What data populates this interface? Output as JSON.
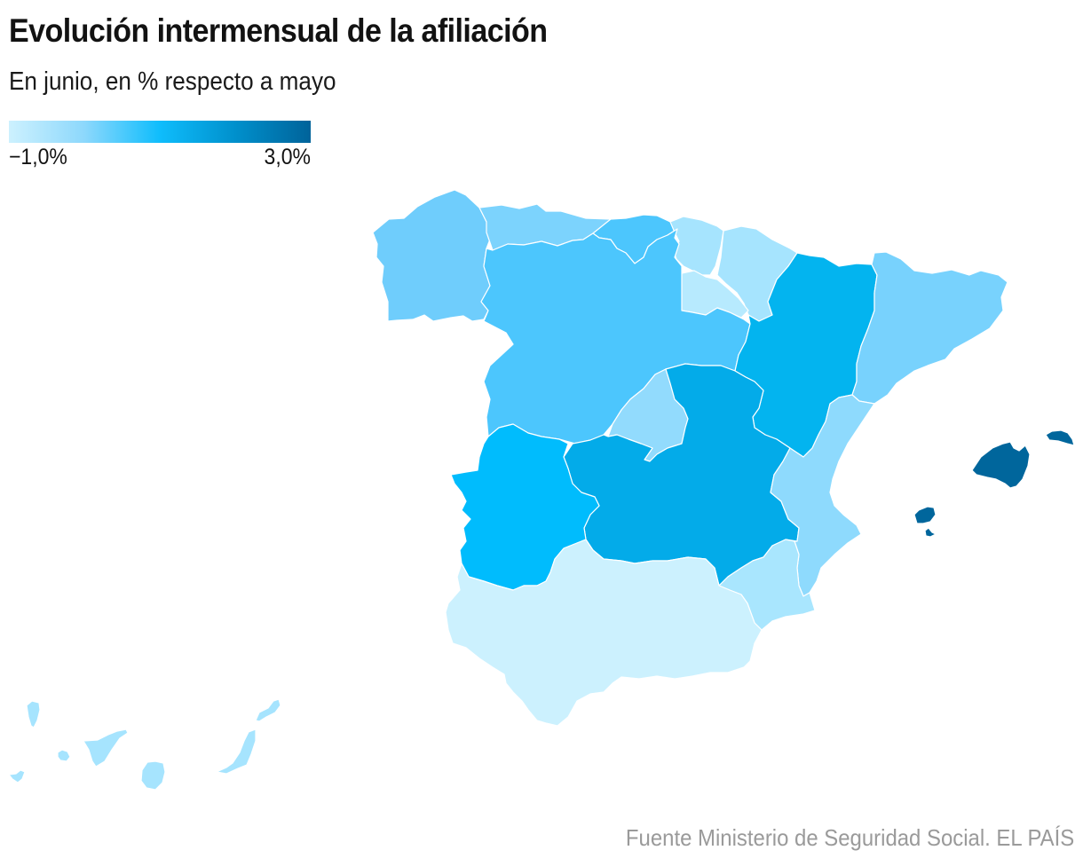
{
  "header": {
    "title": "Evolución intermensual de la afiliación",
    "subtitle": "En junio, en % respecto a mayo"
  },
  "legend": {
    "min_label": "−1,0%",
    "max_label": "3,0%",
    "min_value": -1.0,
    "max_value": 3.0,
    "colors": [
      "#cdf1fe",
      "#8dd8fc",
      "#0fbdfc",
      "#0090cc",
      "#00639a"
    ]
  },
  "map": {
    "type": "choropleth",
    "variable": "Variación intermensual de la afiliación (%)",
    "regions": [
      {
        "id": "galicia",
        "name": "Galicia",
        "color": "#6fcdfc"
      },
      {
        "id": "asturias",
        "name": "Asturias",
        "color": "#7cd3fd"
      },
      {
        "id": "cantabria",
        "name": "Cantabria",
        "color": "#4cc6fd"
      },
      {
        "id": "pais-vasco",
        "name": "País Vasco",
        "color": "#a6e4fe"
      },
      {
        "id": "navarra",
        "name": "Navarra",
        "color": "#a6e4fe"
      },
      {
        "id": "la-rioja",
        "name": "La Rioja",
        "color": "#b7eafe"
      },
      {
        "id": "castilla-y-leon",
        "name": "Castilla y León",
        "color": "#4cc6fd"
      },
      {
        "id": "aragon",
        "name": "Aragón",
        "color": "#03b4ef"
      },
      {
        "id": "cataluna",
        "name": "Cataluña",
        "color": "#78d2fd"
      },
      {
        "id": "madrid",
        "name": "Madrid",
        "color": "#92dbfd"
      },
      {
        "id": "castilla-la-mancha",
        "name": "Castilla-La Mancha",
        "color": "#03abe9"
      },
      {
        "id": "extremadura",
        "name": "Extremadura",
        "color": "#00bcfd"
      },
      {
        "id": "comunidad-valenciana",
        "name": "Comunidad Valenciana",
        "color": "#8edafd"
      },
      {
        "id": "murcia",
        "name": "Murcia",
        "color": "#a9e6fe"
      },
      {
        "id": "andalucia",
        "name": "Andalucía",
        "color": "#ccf1fe"
      },
      {
        "id": "baleares",
        "name": "Islas Baleares",
        "color": "#00669c"
      },
      {
        "id": "canarias",
        "name": "Canarias",
        "color": "#a6e4fe"
      }
    ]
  },
  "footer": {
    "source": "Fuente Ministerio de Seguridad Social. EL PAÍS"
  }
}
